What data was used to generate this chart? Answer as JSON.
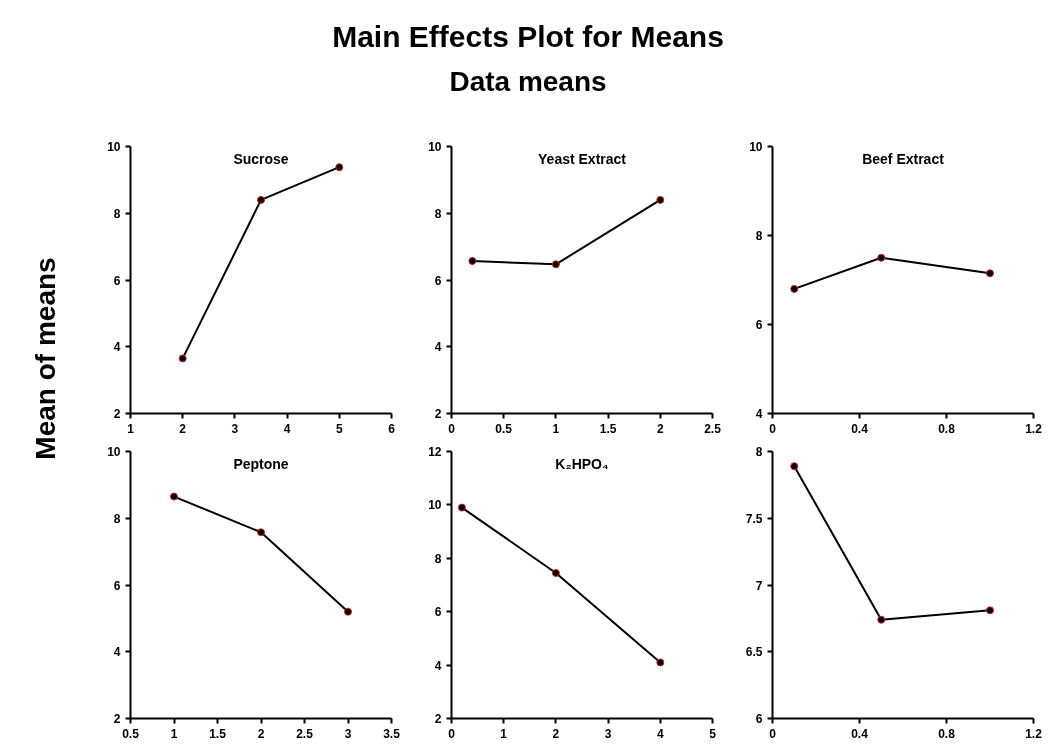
{
  "chart_data": [
    {
      "type": "other",
      "title": "Main Effects Plot for Means",
      "subtitle": "Data means",
      "ylabel": "Mean of means"
    },
    {
      "type": "line",
      "title": "Sucrose",
      "x": [
        2,
        3.5,
        5
      ],
      "series": [
        {
          "color": "#000000",
          "values": [
            3.65,
            8.4,
            9.38
          ]
        }
      ],
      "xlim": [
        1,
        6
      ],
      "xticks": [
        1,
        2,
        3,
        4,
        5,
        6
      ],
      "ylim": [
        2,
        10
      ],
      "yticks": [
        2,
        4,
        6,
        8,
        10
      ],
      "marker": "circle",
      "grid": false
    },
    {
      "type": "line",
      "title": "Yeast Extract",
      "x": [
        0.2,
        1,
        2
      ],
      "series": [
        {
          "color": "#000000",
          "values": [
            6.57,
            6.47,
            8.4
          ]
        }
      ],
      "xlim": [
        0,
        2.5
      ],
      "xticks": [
        0,
        0.5,
        1,
        1.5,
        2,
        2.5
      ],
      "ylim": [
        2,
        10
      ],
      "yticks": [
        2,
        4,
        6,
        8,
        10
      ],
      "marker": "circle",
      "grid": false
    },
    {
      "type": "line",
      "title": "Beef Extract",
      "x": [
        0.1,
        0.5,
        1
      ],
      "series": [
        {
          "color": "#000000",
          "values": [
            6.8,
            7.5,
            7.15
          ]
        }
      ],
      "xlim": [
        0,
        1.2
      ],
      "xticks": [
        0,
        0.4,
        0.8,
        1.2
      ],
      "ylim": [
        4,
        10
      ],
      "yticks": [
        4,
        6,
        8,
        10
      ],
      "marker": "circle",
      "grid": false
    },
    {
      "type": "line",
      "title": "Peptone",
      "x": [
        1,
        2,
        3
      ],
      "series": [
        {
          "color": "#000000",
          "values": [
            8.65,
            7.58,
            5.2
          ]
        }
      ],
      "xlim": [
        0.5,
        3.5
      ],
      "xticks": [
        0.5,
        1,
        1.5,
        2,
        2.5,
        3,
        3.5
      ],
      "ylim": [
        2,
        10
      ],
      "yticks": [
        2,
        4,
        6,
        8,
        10
      ],
      "marker": "circle",
      "grid": false
    },
    {
      "type": "line",
      "title": "K₂HPO₄",
      "x": [
        0.2,
        2,
        4
      ],
      "series": [
        {
          "color": "#000000",
          "values": [
            9.9,
            7.45,
            4.1
          ]
        }
      ],
      "xlim": [
        0,
        5
      ],
      "xticks": [
        0,
        1,
        2,
        3,
        4,
        5
      ],
      "ylim": [
        2,
        12
      ],
      "yticks": [
        2,
        4,
        6,
        8,
        10,
        12
      ],
      "marker": "circle",
      "grid": false
    },
    {
      "type": "line",
      "x": [
        0.1,
        0.5,
        1
      ],
      "series": [
        {
          "color": "#000000",
          "values": [
            7.89,
            6.74,
            6.81
          ]
        }
      ],
      "xlim": [
        0,
        1.2
      ],
      "xticks": [
        0,
        0.4,
        0.8,
        1.2
      ],
      "ylim": [
        6,
        8
      ],
      "yticks": [
        6,
        6.5,
        7,
        7.5,
        8
      ],
      "marker": "circle",
      "grid": false
    }
  ]
}
